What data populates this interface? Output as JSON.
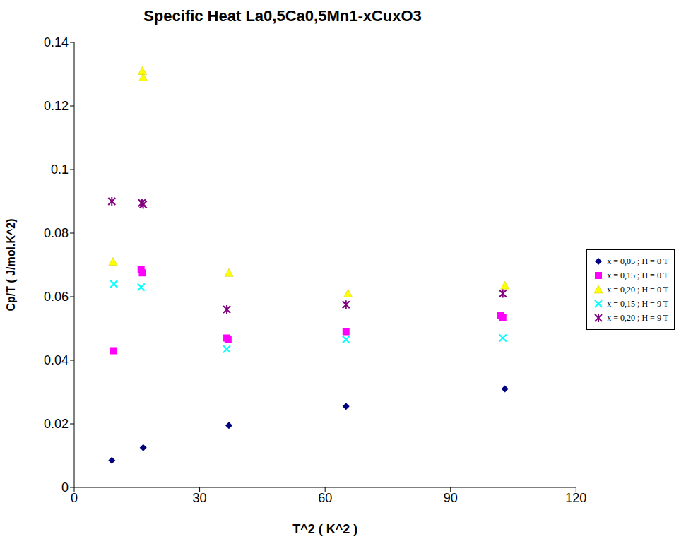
{
  "chart_data": {
    "type": "scatter",
    "title": "Specific Heat La0,5Ca0,5Mn1-xCuxO3",
    "xlabel": "T^2 ( K^2 )",
    "ylabel": "Cp/T ( J/mol.K^2)",
    "xlim": [
      0,
      120
    ],
    "xticks": [
      0,
      30,
      60,
      90,
      120
    ],
    "ylim": [
      0,
      0.14
    ],
    "yticks": [
      0,
      0.02,
      0.04,
      0.06,
      0.08,
      0.1,
      0.12,
      0.14
    ],
    "grid": false,
    "legend": "right",
    "series": [
      {
        "name": "x = 0,05 ; H = 0 T",
        "color": "#000080",
        "marker": "diamond",
        "x": [
          9,
          16.5,
          37,
          65,
          103
        ],
        "values": [
          0.0085,
          0.0125,
          0.0195,
          0.0255,
          0.031
        ]
      },
      {
        "name": "x = 0,15 ; H = 0 T",
        "color": "#FF00FF",
        "marker": "square",
        "x": [
          9.3,
          16,
          16.3,
          36.5,
          36.8,
          65,
          102,
          102.5
        ],
        "values": [
          0.043,
          0.0685,
          0.0675,
          0.047,
          0.0465,
          0.049,
          0.054,
          0.0535
        ]
      },
      {
        "name": "x = 0,20 ; H = 0 T",
        "color": "#FFFF00",
        "marker": "triangle",
        "x": [
          9.3,
          16.3,
          16.5,
          37,
          65.5,
          103
        ],
        "values": [
          0.071,
          0.131,
          0.129,
          0.0675,
          0.061,
          0.0635
        ]
      },
      {
        "name": "x = 0,15 ; H = 9 T",
        "color": "#00FFFF",
        "marker": "x",
        "x": [
          9.5,
          16,
          36.5,
          65,
          102.5
        ],
        "values": [
          0.064,
          0.063,
          0.0435,
          0.0465,
          0.047
        ]
      },
      {
        "name": "x = 0,20 ; H = 9 T",
        "color": "#800080",
        "marker": "star",
        "x": [
          9,
          16.2,
          16.5,
          36.5,
          65,
          102.5
        ],
        "values": [
          0.09,
          0.0895,
          0.089,
          0.056,
          0.0575,
          0.061
        ]
      }
    ]
  }
}
